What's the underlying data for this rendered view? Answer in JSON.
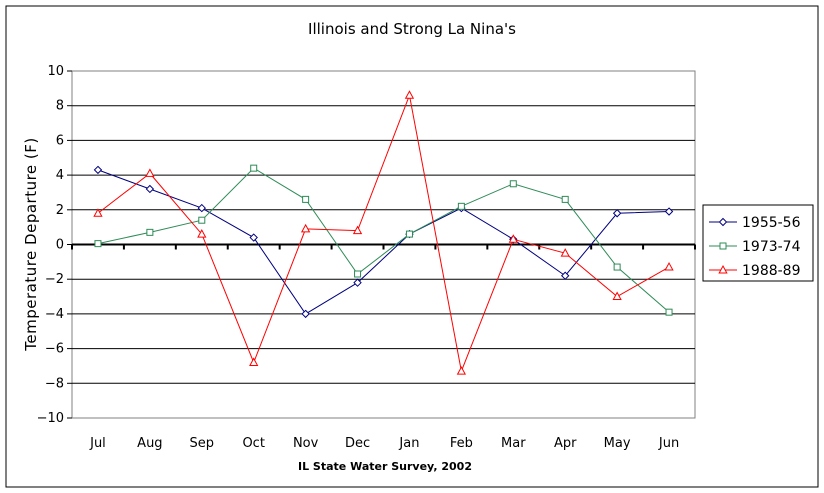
{
  "chart_data": {
    "type": "line",
    "title": "Illinois and Strong La Nina's",
    "xlabel": "",
    "ylabel": "Temperature Departure (F)",
    "source": "IL State Water Survey, 2002",
    "categories": [
      "Jul",
      "Aug",
      "Sep",
      "Oct",
      "Nov",
      "Dec",
      "Jan",
      "Feb",
      "Mar",
      "Apr",
      "May",
      "Jun"
    ],
    "ylim": [
      -10,
      10
    ],
    "yticks": [
      10,
      8,
      6,
      4,
      2,
      0,
      -2,
      -4,
      -6,
      -8,
      -10
    ],
    "ytick_labels": [
      "10",
      "8",
      "6",
      "4",
      "2",
      "0",
      "−2",
      "−4",
      "−6",
      "−8",
      "−10"
    ],
    "grid": true,
    "legend_position": "right",
    "series": [
      {
        "name": "1955-56",
        "color": "#000080",
        "marker": "diamond",
        "values": [
          4.3,
          3.2,
          2.1,
          0.4,
          -4.0,
          -2.2,
          0.6,
          2.1,
          0.3,
          -1.8,
          1.8,
          1.9
        ]
      },
      {
        "name": "1973-74",
        "color": "#2E8B57",
        "marker": "square",
        "values": [
          0.05,
          0.7,
          1.4,
          4.4,
          2.6,
          -1.7,
          0.6,
          2.2,
          3.5,
          2.6,
          -1.3,
          -3.9
        ]
      },
      {
        "name": "1988-89",
        "color": "#FF0000",
        "marker": "triangle",
        "values": [
          1.8,
          4.1,
          0.6,
          -6.8,
          0.9,
          0.8,
          8.6,
          -7.3,
          0.3,
          -0.5,
          -3.0,
          -1.3
        ]
      }
    ]
  }
}
